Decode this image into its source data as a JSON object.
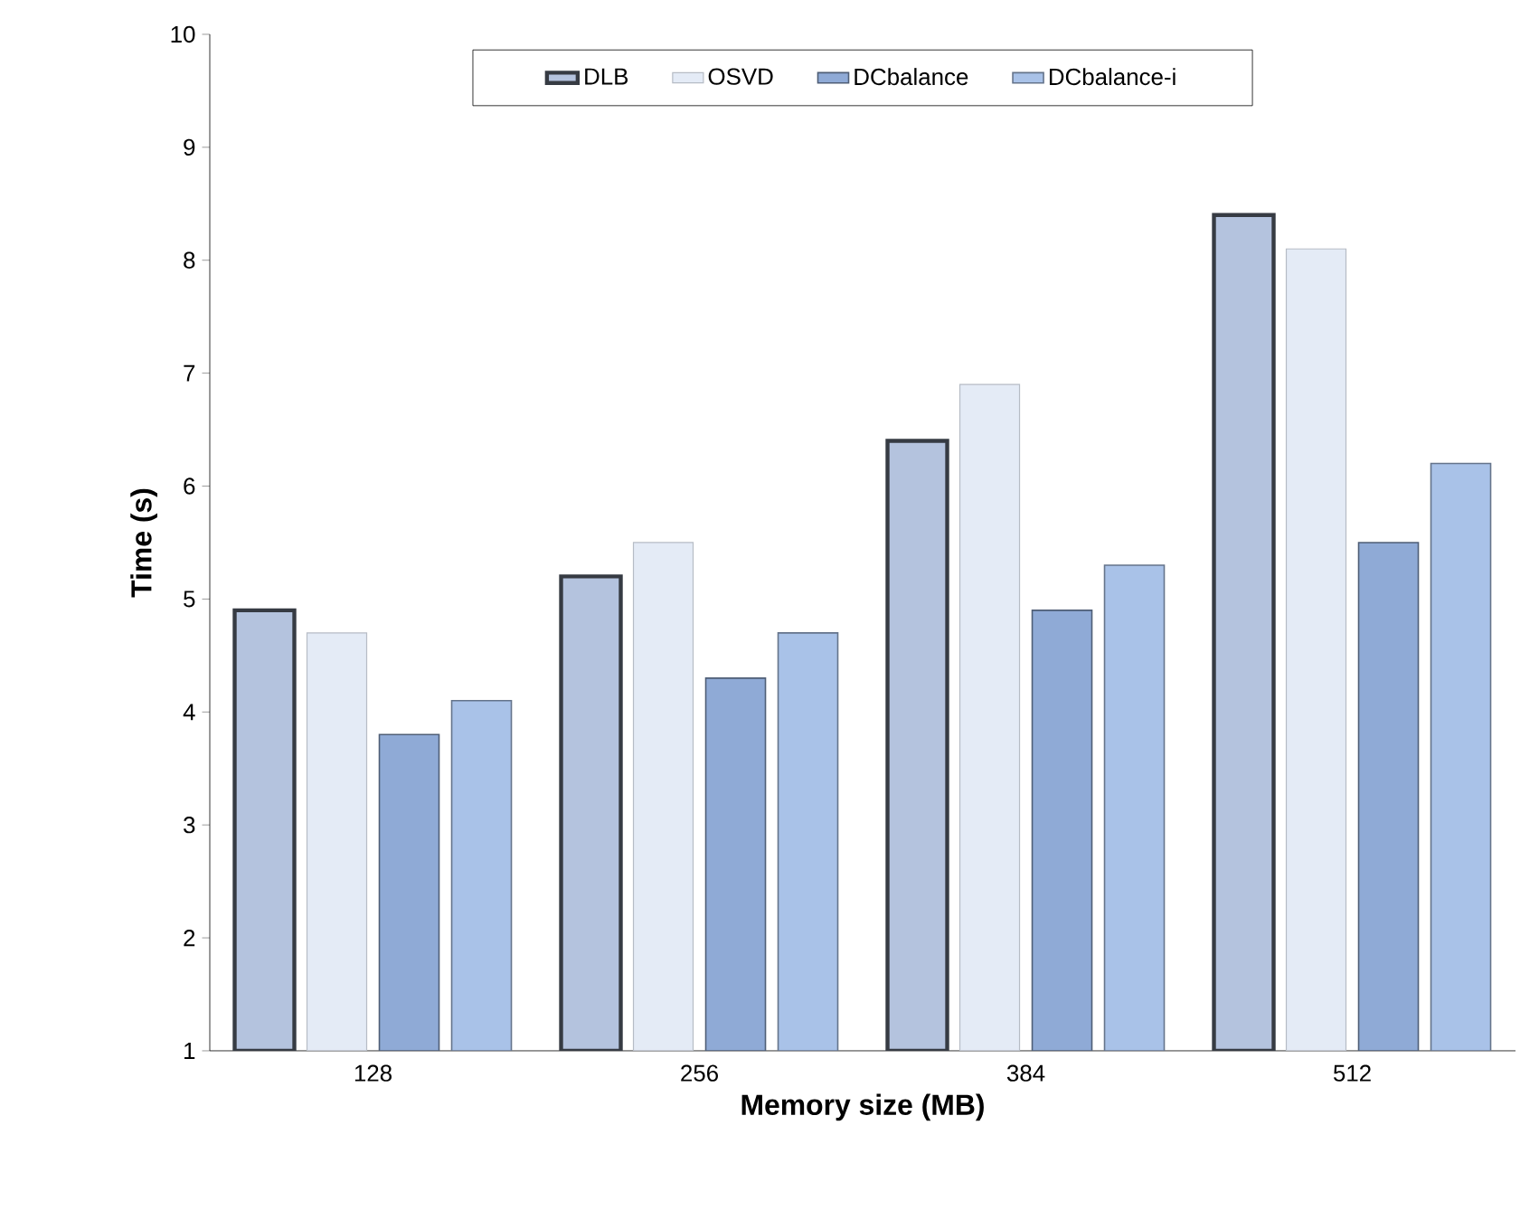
{
  "chart_data": {
    "type": "bar",
    "xlabel": "Memory size (MB)",
    "ylabel": "Time (s)",
    "categories": [
      "128",
      "256",
      "384",
      "512"
    ],
    "series": [
      {
        "name": "DLB",
        "color": "#b4c3de",
        "values": [
          4.9,
          5.2,
          6.4,
          8.4
        ]
      },
      {
        "name": "OSVD",
        "color": "#e4ebf6",
        "values": [
          4.7,
          5.5,
          6.9,
          8.1
        ]
      },
      {
        "name": "DCbalance",
        "color": "#8faad6",
        "values": [
          3.8,
          4.3,
          4.9,
          5.5
        ]
      },
      {
        "name": "DCbalance-i",
        "color": "#a9c2e8",
        "values": [
          4.1,
          4.7,
          5.3,
          6.2
        ]
      }
    ],
    "ylim": [
      1,
      10
    ],
    "yticks": [
      1,
      2,
      3,
      4,
      5,
      6,
      7,
      8,
      9,
      10
    ],
    "grid": false,
    "legend": "top"
  }
}
